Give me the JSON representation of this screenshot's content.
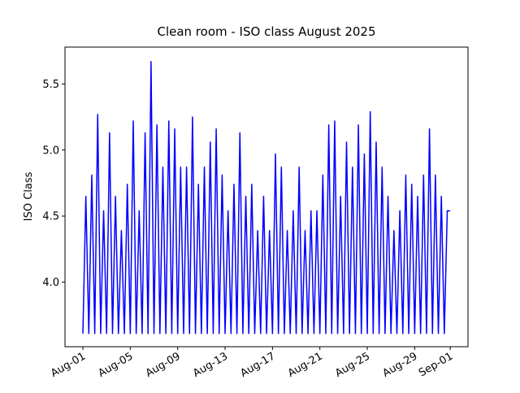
{
  "chart_data": {
    "type": "line",
    "title": "Clean room - ISO class August 2025",
    "ylabel": "ISO Class",
    "color": "#0000ff",
    "x": [
      0,
      0.25,
      0.5,
      0.75,
      1,
      1.25,
      1.5,
      1.75,
      2,
      2.25,
      2.5,
      2.75,
      3,
      3.25,
      3.5,
      3.75,
      4,
      4.25,
      4.5,
      4.75,
      5,
      5.25,
      5.5,
      5.75,
      6,
      6.25,
      6.5,
      6.75,
      7,
      7.25,
      7.5,
      7.75,
      8,
      8.25,
      8.5,
      8.75,
      9,
      9.25,
      9.5,
      9.75,
      10,
      10.25,
      10.5,
      10.75,
      11,
      11.25,
      11.5,
      11.75,
      12,
      12.25,
      12.5,
      12.75,
      13,
      13.25,
      13.5,
      13.75,
      14,
      14.25,
      14.5,
      14.75,
      15,
      15.25,
      15.5,
      15.75,
      16,
      16.25,
      16.5,
      16.75,
      17,
      17.25,
      17.5,
      17.75,
      18,
      18.25,
      18.5,
      18.75,
      19,
      19.25,
      19.5,
      19.75,
      20,
      20.25,
      20.5,
      20.75,
      21,
      21.25,
      21.5,
      21.75,
      22,
      22.25,
      22.5,
      22.75,
      23,
      23.25,
      23.5,
      23.75,
      24,
      24.25,
      24.5,
      24.75,
      25,
      25.25,
      25.5,
      25.75,
      26,
      26.25,
      26.5,
      26.75,
      27,
      27.25,
      27.5,
      27.75,
      28,
      28.25,
      28.5,
      28.75,
      29,
      29.25,
      29.5,
      29.75,
      30,
      30.25,
      30.5,
      30.75,
      31
    ],
    "values": [
      3.61,
      4.65,
      3.61,
      4.81,
      3.61,
      5.27,
      3.61,
      4.54,
      3.61,
      5.13,
      3.61,
      4.65,
      3.61,
      4.39,
      3.61,
      4.74,
      3.61,
      5.22,
      3.61,
      4.54,
      3.61,
      5.13,
      3.61,
      5.67,
      3.61,
      5.19,
      3.61,
      4.87,
      3.61,
      5.22,
      3.61,
      5.16,
      3.61,
      4.87,
      3.61,
      4.87,
      3.61,
      5.25,
      3.61,
      4.74,
      3.61,
      4.87,
      3.61,
      5.06,
      3.61,
      5.16,
      3.61,
      4.81,
      3.61,
      4.54,
      3.61,
      4.74,
      3.61,
      5.13,
      3.61,
      4.65,
      3.61,
      4.74,
      3.61,
      4.39,
      3.61,
      4.65,
      3.61,
      4.39,
      3.61,
      4.97,
      3.61,
      4.87,
      3.61,
      4.39,
      3.61,
      4.54,
      3.61,
      4.87,
      3.61,
      4.39,
      3.61,
      4.54,
      3.61,
      4.54,
      3.61,
      4.81,
      3.61,
      5.19,
      3.61,
      5.22,
      3.61,
      4.65,
      3.61,
      5.06,
      3.61,
      4.87,
      3.61,
      5.19,
      3.61,
      4.97,
      3.61,
      5.29,
      3.61,
      5.06,
      3.61,
      4.87,
      3.61,
      4.65,
      3.61,
      4.39,
      3.61,
      4.54,
      3.61,
      4.81,
      3.61,
      4.74,
      3.61,
      4.65,
      3.61,
      4.81,
      3.61,
      5.16,
      3.61,
      4.81,
      3.61,
      4.65,
      3.61,
      4.54,
      4.54
    ],
    "xlim": [
      -1.51,
      32.5
    ],
    "ylim": [
      3.51,
      5.78
    ],
    "xticks": [
      {
        "value": 0,
        "label": "Aug-01"
      },
      {
        "value": 4,
        "label": "Aug-05"
      },
      {
        "value": 8,
        "label": "Aug-09"
      },
      {
        "value": 12,
        "label": "Aug-13"
      },
      {
        "value": 16,
        "label": "Aug-17"
      },
      {
        "value": 20,
        "label": "Aug-21"
      },
      {
        "value": 24,
        "label": "Aug-25"
      },
      {
        "value": 28,
        "label": "Aug-29"
      },
      {
        "value": 31,
        "label": "Sep-01"
      }
    ],
    "yticks": [
      {
        "value": 4,
        "label": "4.0"
      },
      {
        "value": 4.5,
        "label": "4.5"
      },
      {
        "value": 5,
        "label": "5.0"
      },
      {
        "value": 5.5,
        "label": "5.5"
      }
    ],
    "grid": false
  }
}
